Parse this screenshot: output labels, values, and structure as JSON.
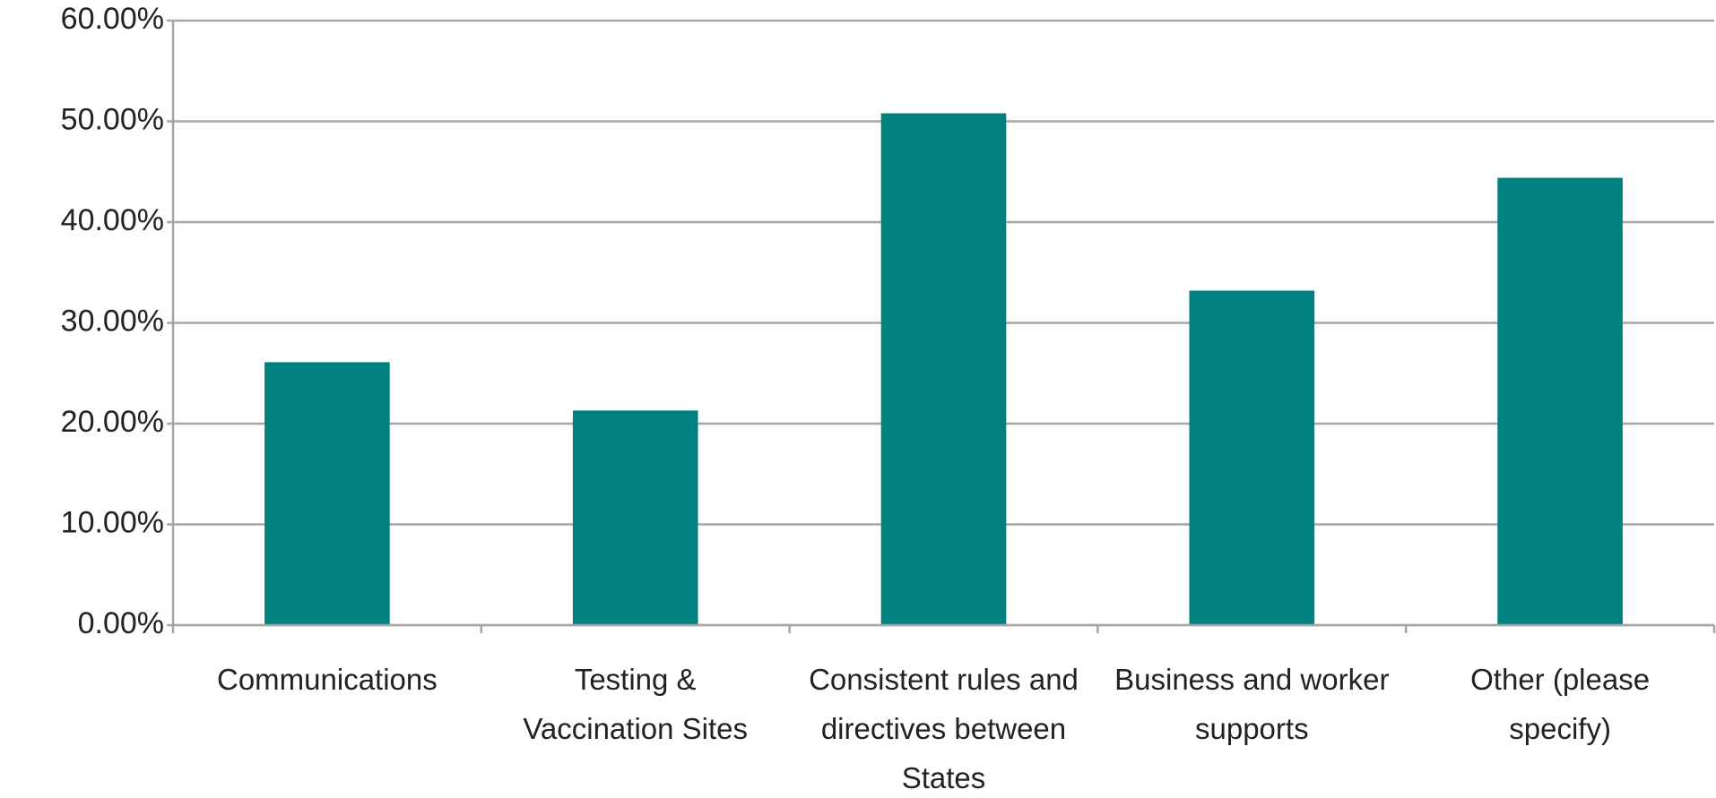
{
  "chart_data": {
    "type": "bar",
    "categories": [
      "Communications",
      "Testing & Vaccination Sites",
      "Consistent rules and directives between States",
      "Business and worker supports",
      "Other (please specify)"
    ],
    "values": [
      26.1,
      21.3,
      50.8,
      33.2,
      44.4
    ],
    "color": "#008080",
    "ylim": [
      0,
      60
    ],
    "yticks": [
      {
        "value": 0,
        "label": "0.00%"
      },
      {
        "value": 10,
        "label": "10.00%"
      },
      {
        "value": 20,
        "label": "20.00%"
      },
      {
        "value": 30,
        "label": "30.00%"
      },
      {
        "value": 40,
        "label": "40.00%"
      },
      {
        "value": 50,
        "label": "50.00%"
      },
      {
        "value": 60,
        "label": "60.00%"
      }
    ],
    "grid": true
  }
}
